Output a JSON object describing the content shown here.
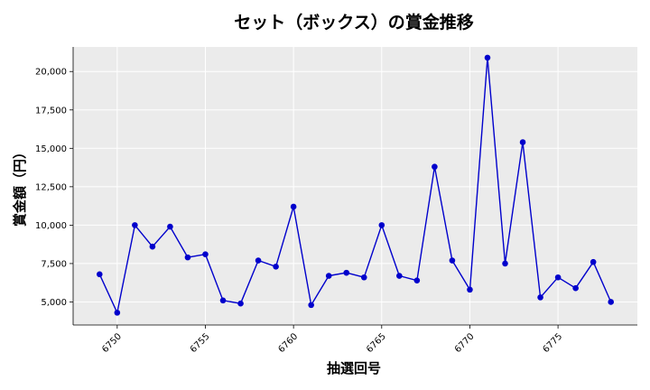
{
  "chart_data": {
    "type": "line",
    "title": "セット（ボックス）の賞金推移",
    "xlabel": "抽選回号",
    "ylabel": "賞金額（円）",
    "xlim": [
      6747.5,
      6779.5
    ],
    "ylim": [
      3500,
      21600
    ],
    "x_ticks": [
      6750,
      6755,
      6760,
      6765,
      6770,
      6775
    ],
    "y_ticks": [
      5000,
      7500,
      10000,
      12500,
      15000,
      17500,
      20000
    ],
    "y_tick_labels": [
      "5,000",
      "7,500",
      "10,000",
      "12,500",
      "15,000",
      "17,500",
      "20,000"
    ],
    "grid": true,
    "series": [
      {
        "color": "#0000cc",
        "x": [
          6749,
          6750,
          6751,
          6752,
          6753,
          6754,
          6755,
          6756,
          6757,
          6758,
          6759,
          6760,
          6761,
          6762,
          6763,
          6764,
          6765,
          6766,
          6767,
          6768,
          6769,
          6770,
          6771,
          6772,
          6773,
          6774,
          6775,
          6776,
          6777,
          6778
        ],
        "values": [
          6800,
          4300,
          10000,
          8600,
          9900,
          7900,
          8100,
          5100,
          4900,
          7700,
          7300,
          11200,
          4800,
          6700,
          6900,
          6600,
          10000,
          6700,
          6400,
          13800,
          7700,
          5800,
          20900,
          7500,
          15400,
          5300,
          6600,
          5900,
          7600,
          5000
        ]
      }
    ]
  }
}
